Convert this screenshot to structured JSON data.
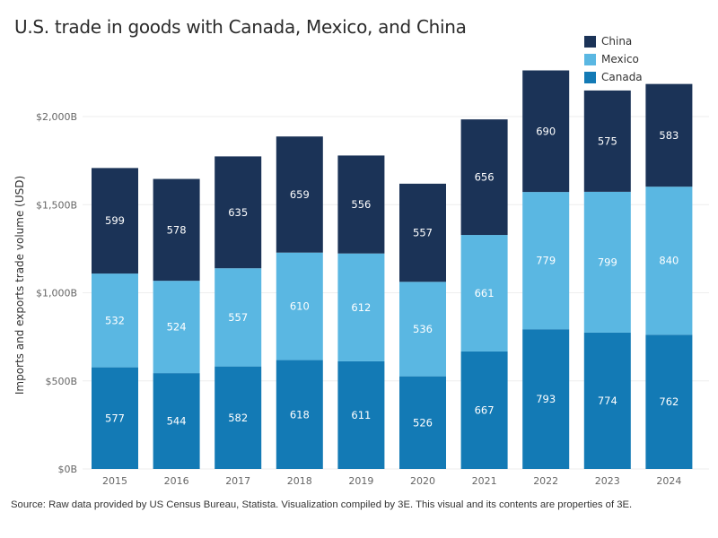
{
  "chart_data": {
    "type": "bar",
    "stacked": true,
    "title": "U.S. trade in goods with Canada, Mexico, and China",
    "xlabel": "",
    "ylabel": "Imports and exports trade volume (USD)",
    "ylim": [
      0,
      2000
    ],
    "yticks": [
      {
        "value": 0,
        "label": "$0B"
      },
      {
        "value": 500,
        "label": "$500B"
      },
      {
        "value": 1000,
        "label": "$1,000B"
      },
      {
        "value": 1500,
        "label": "$1,500B"
      },
      {
        "value": 2000,
        "label": "$2,000B"
      }
    ],
    "grid": true,
    "legend_position": "top-right",
    "categories": [
      "2015",
      "2016",
      "2017",
      "2018",
      "2019",
      "2020",
      "2021",
      "2022",
      "2023",
      "2024"
    ],
    "series": [
      {
        "name": "Canada",
        "color": "#137ab5",
        "values": [
          577,
          544,
          582,
          618,
          611,
          526,
          667,
          793,
          774,
          762
        ]
      },
      {
        "name": "Mexico",
        "color": "#5ab7e2",
        "values": [
          532,
          524,
          557,
          610,
          612,
          536,
          661,
          779,
          799,
          840
        ]
      },
      {
        "name": "China",
        "color": "#1b3357",
        "values": [
          599,
          578,
          635,
          659,
          556,
          557,
          656,
          690,
          575,
          583
        ]
      }
    ],
    "legend": [
      "China",
      "Mexico",
      "Canada"
    ],
    "unit": "billion USD"
  },
  "footer": "Source: Raw data provided by US Census Bureau, Statista. Visualization compiled by 3E. This visual and its contents are properties of 3E."
}
